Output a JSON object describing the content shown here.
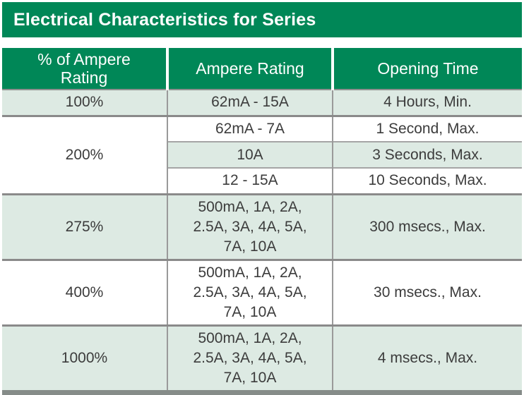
{
  "title": "Electrical Characteristics for Series",
  "colors": {
    "brand_green": "#008757",
    "row_tint": "#ddeae3",
    "text": "#3c3c3c",
    "border_gray": "#8a8a8a"
  },
  "chart_data": {
    "type": "table",
    "title": "Electrical Characteristics for Series",
    "headers": [
      "% of Ampere Rating",
      "Ampere Rating",
      "Opening Time"
    ],
    "rows": [
      [
        "100%",
        "62mA - 15A",
        "4 Hours, Min."
      ],
      [
        "200%",
        "62mA - 7A",
        "1 Second, Max."
      ],
      [
        "200%",
        "10A",
        "3 Seconds, Max."
      ],
      [
        "200%",
        "12 - 15A",
        "10 Seconds, Max."
      ],
      [
        "275%",
        "500mA, 1A, 2A, 2.5A, 3A, 4A, 5A, 7A, 10A",
        "300 msecs., Max."
      ],
      [
        "400%",
        "500mA, 1A, 2A, 2.5A, 3A, 4A, 5A, 7A, 10A",
        "30 msecs., Max."
      ],
      [
        "1000%",
        "500mA, 1A, 2A, 2.5A, 3A, 4A, 5A, 7A, 10A",
        "4 msecs., Max."
      ]
    ]
  },
  "table": {
    "headers": {
      "percent": "% of Ampere\nRating",
      "ampere": "Ampere Rating",
      "time": "Opening Time"
    },
    "rows": {
      "r100": {
        "percent": "100%",
        "ampere": "62mA - 15A",
        "time": "4 Hours, Min."
      },
      "r200a": {
        "percent": "200%",
        "ampere": "62mA - 7A",
        "time": "1 Second, Max."
      },
      "r200b": {
        "ampere": "10A",
        "time": "3 Seconds, Max."
      },
      "r200c": {
        "ampere": "12 - 15A",
        "time": "10 Seconds, Max."
      },
      "r275": {
        "percent": "275%",
        "ampere": "500mA, 1A, 2A,\n2.5A, 3A, 4A, 5A,\n7A, 10A",
        "time": "300 msecs., Max."
      },
      "r400": {
        "percent": "400%",
        "ampere": "500mA, 1A, 2A,\n2.5A, 3A, 4A, 5A,\n7A, 10A",
        "time": "30 msecs., Max."
      },
      "r1000": {
        "percent": "1000%",
        "ampere": "500mA, 1A, 2A,\n2.5A, 3A, 4A, 5A,\n7A, 10A",
        "time": "4 msecs., Max."
      }
    }
  }
}
